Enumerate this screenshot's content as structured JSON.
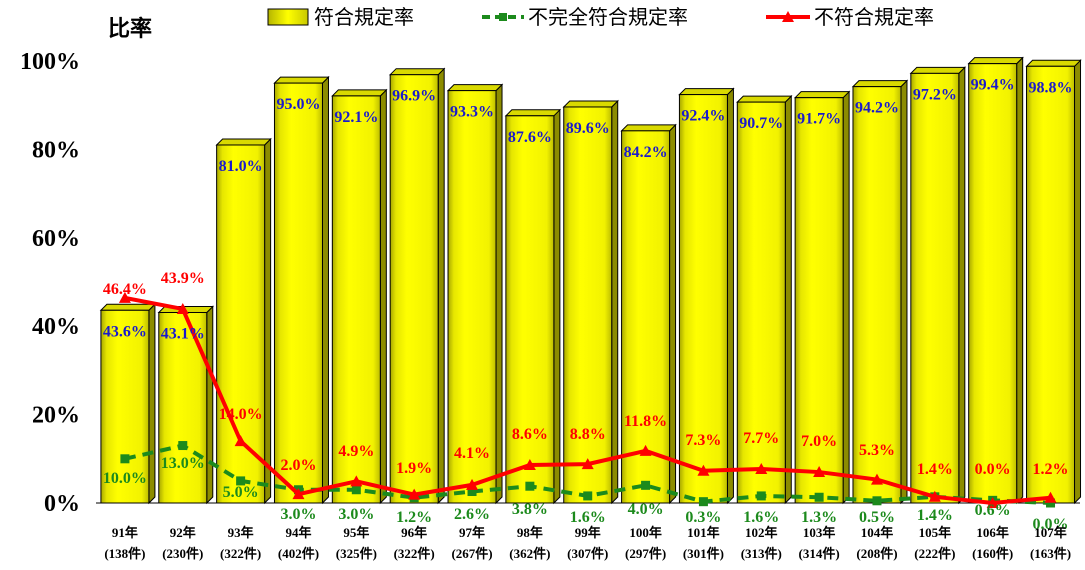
{
  "chart_data": {
    "type": "bar",
    "ylabel": "比率",
    "yticks": [
      "0%",
      "20%",
      "40%",
      "60%",
      "80%",
      "100%"
    ],
    "ylim": [
      0,
      100
    ],
    "legend_position": "top",
    "categories": [
      {
        "year": "91年",
        "count": "(138件)"
      },
      {
        "year": "92年",
        "count": "(230件)"
      },
      {
        "year": "93年",
        "count": "(322件)"
      },
      {
        "year": "94年",
        "count": "(402件)"
      },
      {
        "year": "95年",
        "count": "(325件)"
      },
      {
        "year": "96年",
        "count": "(322件)"
      },
      {
        "year": "97年",
        "count": "(267件)"
      },
      {
        "year": "98年",
        "count": "(362件)"
      },
      {
        "year": "99年",
        "count": "(307件)"
      },
      {
        "year": "100年",
        "count": "(297件)"
      },
      {
        "year": "101年",
        "count": "(301件)"
      },
      {
        "year": "102年",
        "count": "(313件)"
      },
      {
        "year": "103年",
        "count": "(314件)"
      },
      {
        "year": "104年",
        "count": "(208件)"
      },
      {
        "year": "105年",
        "count": "(222件)"
      },
      {
        "year": "106年",
        "count": "(160件)"
      },
      {
        "year": "107年",
        "count": "(163件)"
      }
    ],
    "series": [
      {
        "name": "符合規定率",
        "kind": "bar",
        "color": "#ffff00",
        "values": [
          43.6,
          43.1,
          81.0,
          95.0,
          92.1,
          96.9,
          93.3,
          87.6,
          89.6,
          84.2,
          92.4,
          90.7,
          91.7,
          94.2,
          97.2,
          99.4,
          98.8
        ],
        "labels": [
          "43.6%",
          "43.1%",
          "81.0%",
          "95.0%",
          "92.1%",
          "96.9%",
          "93.3%",
          "87.6%",
          "89.6%",
          "84.2%",
          "92.4%",
          "90.7%",
          "91.7%",
          "94.2%",
          "97.2%",
          "99.4%",
          "98.8%"
        ]
      },
      {
        "name": "不完全符合規定率",
        "kind": "line-dashed",
        "color": "#1c8a1c",
        "values": [
          10.0,
          13.0,
          5.0,
          3.0,
          3.0,
          1.2,
          2.6,
          3.8,
          1.6,
          4.0,
          0.3,
          1.6,
          1.3,
          0.5,
          1.4,
          0.6,
          0.0
        ],
        "labels": [
          "10.0%",
          "13.0%",
          "5.0%",
          "3.0%",
          "3.0%",
          "1.2%",
          "2.6%",
          "3.8%",
          "1.6%",
          "4.0%",
          "0.3%",
          "1.6%",
          "1.3%",
          "0.5%",
          "1.4%",
          "0.6%",
          "0.0%"
        ]
      },
      {
        "name": "不符合規定率",
        "kind": "line",
        "color": "#ff0000",
        "values": [
          46.4,
          43.9,
          14.0,
          2.0,
          4.9,
          1.9,
          4.1,
          8.6,
          8.8,
          11.8,
          7.3,
          7.7,
          7.0,
          5.3,
          1.4,
          0.0,
          1.2
        ],
        "labels": [
          "46.4%",
          "43.9%",
          "14.0%",
          "2.0%",
          "4.9%",
          "1.9%",
          "4.1%",
          "8.6%",
          "8.8%",
          "11.8%",
          "7.3%",
          "7.7%",
          "7.0%",
          "5.3%",
          "1.4%",
          "0.0%",
          "1.2%"
        ]
      }
    ]
  }
}
